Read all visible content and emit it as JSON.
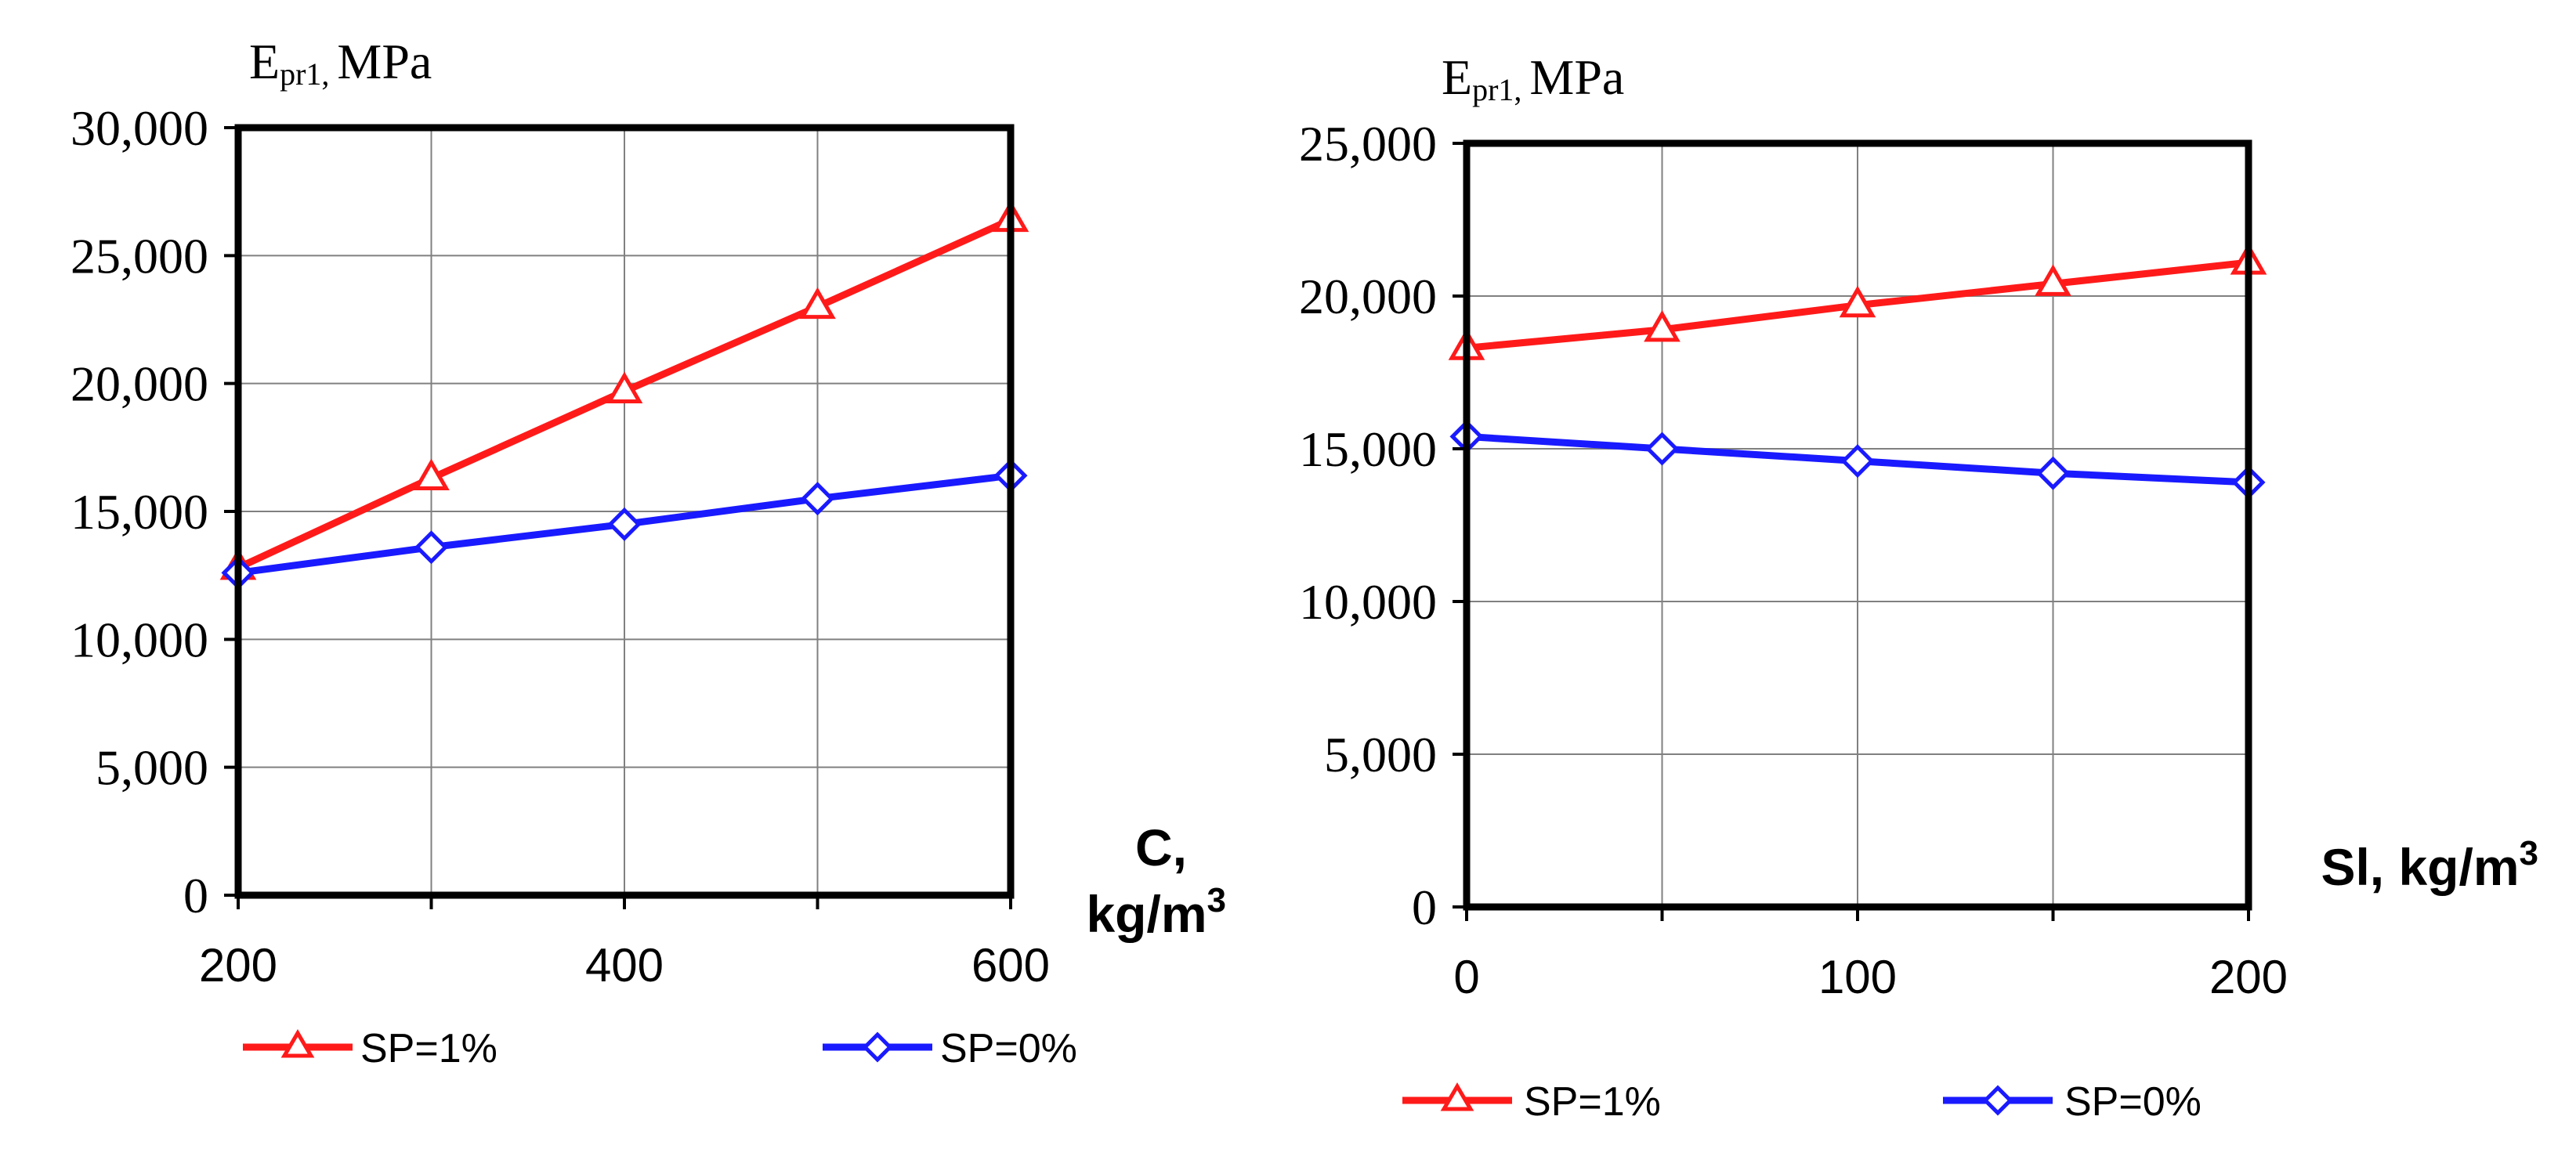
{
  "colors": {
    "sp1": "#ff1a1a",
    "sp0": "#1a1aff",
    "frame": "#000000",
    "grid": "#808080"
  },
  "chart_data": [
    {
      "type": "line",
      "ylabel_main": "E",
      "ylabel_sub": "pr1,",
      "ylabel_unit": "MPa",
      "xlabel_line1": "C,",
      "xlabel_line2": "kg/m",
      "xlabel_sup": "3",
      "x": [
        200,
        300,
        400,
        500,
        600
      ],
      "xlim": [
        200,
        600
      ],
      "xticks": [
        200,
        400,
        600
      ],
      "xtick_labels": [
        "200",
        "400",
        "600"
      ],
      "ylim": [
        0,
        30000
      ],
      "yticks": [
        0,
        5000,
        10000,
        15000,
        20000,
        25000,
        30000
      ],
      "ytick_labels": [
        "0",
        "5,000",
        "10,000",
        "15,000",
        "20,000",
        "25,000",
        "30,000"
      ],
      "series": [
        {
          "name": "SP=1%",
          "marker": "triangle",
          "values": [
            12800,
            16300,
            19700,
            23000,
            26400
          ]
        },
        {
          "name": "SP=0%",
          "marker": "diamond",
          "values": [
            12600,
            13600,
            14500,
            15500,
            16400
          ]
        }
      ],
      "legend": [
        "SP=1%",
        "SP=0%"
      ]
    },
    {
      "type": "line",
      "ylabel_main": "E",
      "ylabel_sub": "pr1,",
      "ylabel_unit": "MPa",
      "xlabel_line1": "Sl, kg/m",
      "xlabel_sup": "3",
      "x": [
        0,
        50,
        100,
        150,
        200
      ],
      "xlim": [
        0,
        200
      ],
      "xticks": [
        0,
        100,
        200
      ],
      "xtick_labels": [
        "0",
        "100",
        "200"
      ],
      "ylim": [
        0,
        25000
      ],
      "yticks": [
        0,
        5000,
        10000,
        15000,
        20000,
        25000
      ],
      "ytick_labels": [
        "0",
        "5,000",
        "10,000",
        "15,000",
        "20,000",
        "25,000"
      ],
      "series": [
        {
          "name": "SP=1%",
          "marker": "triangle",
          "values": [
            18300,
            18900,
            19700,
            20400,
            21100
          ]
        },
        {
          "name": "SP=0%",
          "marker": "diamond",
          "values": [
            15400,
            15000,
            14600,
            14200,
            13900
          ]
        }
      ],
      "legend": [
        "SP=1%",
        "SP=0%"
      ]
    }
  ]
}
